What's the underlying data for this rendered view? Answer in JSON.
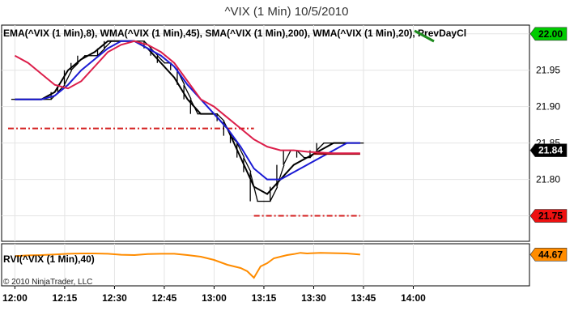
{
  "chart_data": {
    "type": "line",
    "title": "^VIX (1 Min)  10/5/2010",
    "price_panel": {
      "legend": "EMA(^VIX (1 Min),8),  WMA(^VIX (1 Min),45),  SMA(^VIX (1 Min),200),  WMA(^VIX (1 Min),20),  PrevDayCl",
      "ylim": [
        21.715,
        22.012
      ],
      "y_ticks": [
        "22.00",
        "21.95",
        "21.90",
        "21.85",
        "21.80",
        "21.75"
      ],
      "prev_day_close": 21.87,
      "candles": {
        "x": [
          0,
          2,
          4,
          6,
          8,
          10,
          12,
          14,
          16,
          18,
          20,
          22,
          24,
          26,
          28,
          30,
          32,
          34,
          36,
          38,
          40,
          42,
          44,
          46,
          48,
          50,
          52,
          54,
          56,
          58,
          60,
          62,
          64,
          66,
          68,
          70,
          72,
          74,
          76,
          78,
          80,
          82,
          84,
          86,
          88,
          90,
          92,
          94,
          96,
          98,
          100,
          102,
          104
        ],
        "close": [
          21.91,
          21.91,
          21.91,
          21.91,
          21.91,
          21.91,
          21.92,
          21.93,
          21.95,
          21.96,
          21.97,
          21.97,
          21.97,
          21.98,
          21.99,
          21.99,
          21.99,
          21.99,
          21.99,
          21.99,
          21.98,
          21.97,
          21.96,
          21.96,
          21.95,
          21.93,
          21.91,
          21.89,
          21.89,
          21.89,
          21.89,
          21.88,
          21.86,
          21.85,
          21.83,
          21.81,
          21.77,
          21.77,
          21.77,
          21.79,
          21.82,
          21.84,
          21.84,
          21.83,
          21.83,
          21.84,
          21.85,
          21.85,
          21.85,
          21.85,
          21.85,
          21.85,
          21.85
        ]
      },
      "series": [
        {
          "name": "EMA(^VIX (1 Min),8)",
          "color": "#000000",
          "x": [
            0,
            4,
            8,
            12,
            16,
            20,
            24,
            28,
            32,
            36,
            40,
            44,
            48,
            52,
            56,
            60,
            64,
            68,
            72,
            76,
            80,
            84,
            88,
            92,
            96,
            100,
            104
          ],
          "values": [
            21.91,
            21.91,
            21.91,
            21.92,
            21.95,
            21.965,
            21.975,
            21.99,
            21.99,
            21.99,
            21.98,
            21.96,
            21.94,
            21.91,
            21.89,
            21.89,
            21.87,
            21.83,
            21.79,
            21.78,
            21.8,
            21.82,
            21.83,
            21.84,
            21.85,
            21.85,
            21.85
          ]
        },
        {
          "name": "WMA(^VIX (1 Min),45)",
          "color": "#1a1ad4",
          "x": [
            0,
            4,
            8,
            12,
            16,
            20,
            24,
            28,
            32,
            36,
            40,
            44,
            48,
            52,
            56,
            60,
            64,
            68,
            72,
            76,
            80,
            84,
            88,
            92,
            96,
            100,
            104
          ],
          "values": [
            21.91,
            21.91,
            21.91,
            21.915,
            21.93,
            21.95,
            21.965,
            21.98,
            21.99,
            21.99,
            21.98,
            21.97,
            21.955,
            21.93,
            21.91,
            21.89,
            21.87,
            21.845,
            21.815,
            21.8,
            21.8,
            21.81,
            21.82,
            21.83,
            21.84,
            21.85,
            21.85
          ]
        },
        {
          "name": "SMA(^VIX (1 Min),200)",
          "color": "#8b0000",
          "x": [
            90,
            92,
            96,
            100,
            104
          ],
          "values": [
            21.835,
            21.835,
            21.835,
            21.835,
            21.835
          ]
        },
        {
          "name": "WMA(^VIX (1 Min),20)",
          "color": "#dc1e4a",
          "x": [
            0,
            4,
            8,
            12,
            16,
            20,
            24,
            28,
            32,
            36,
            40,
            44,
            48,
            52,
            56,
            60,
            64,
            68,
            72,
            76,
            80,
            84,
            88,
            92,
            96,
            100,
            104
          ],
          "values": [
            21.97,
            21.96,
            21.945,
            21.93,
            21.925,
            21.935,
            21.955,
            21.975,
            21.985,
            21.99,
            21.985,
            21.975,
            21.96,
            21.935,
            21.91,
            21.9,
            21.885,
            21.87,
            21.855,
            21.845,
            21.84,
            21.84,
            21.838,
            21.837,
            21.836,
            21.836,
            21.836
          ]
        }
      ],
      "badges": [
        {
          "label": "22.00",
          "value": 22.0,
          "bg": "#00cc00",
          "fg": "#000000"
        },
        {
          "label": "21.84",
          "value": 21.84,
          "bg": "#000000",
          "fg": "#ffffff"
        },
        {
          "label": "21.75",
          "value": 21.75,
          "bg": "#ee1111",
          "fg": "#000000"
        }
      ]
    },
    "rvi_panel": {
      "legend": "RVI(^VIX (1 Min),40)",
      "color": "#ff8c00",
      "ylim": [
        35,
        48
      ],
      "x": [
        0,
        4,
        8,
        12,
        16,
        20,
        24,
        28,
        32,
        36,
        40,
        44,
        48,
        52,
        56,
        60,
        64,
        68,
        70,
        72,
        74,
        76,
        78,
        80,
        82,
        84,
        86,
        88,
        92,
        96,
        100,
        104
      ],
      "values": [
        44.2,
        44.4,
        44.5,
        44.7,
        44.9,
        45.0,
        45.0,
        44.9,
        44.6,
        44.5,
        44.8,
        44.9,
        44.9,
        44.5,
        44.0,
        43.0,
        41.5,
        40.5,
        39.5,
        37.5,
        41.0,
        42.0,
        43.5,
        44.0,
        44.5,
        44.8,
        45.2,
        45.0,
        45.2,
        45.1,
        45.0,
        44.67
      ],
      "badge": {
        "label": "44.67",
        "value": 44.67,
        "bg": "#ff8c00",
        "fg": "#000000"
      }
    },
    "x_axis": {
      "xlim": [
        -4,
        155
      ],
      "ticks": [
        {
          "label": "12:00",
          "x": 0
        },
        {
          "label": "12:15",
          "x": 15
        },
        {
          "label": "12:30",
          "x": 30
        },
        {
          "label": "12:45",
          "x": 45
        },
        {
          "label": "13:00",
          "x": 60
        },
        {
          "label": "13:15",
          "x": 75
        },
        {
          "label": "13:30",
          "x": 90
        },
        {
          "label": "13:45",
          "x": 105
        },
        {
          "label": "14:00",
          "x": 120
        }
      ]
    },
    "copyright": "© 2010 NinjaTrader, LLC"
  }
}
